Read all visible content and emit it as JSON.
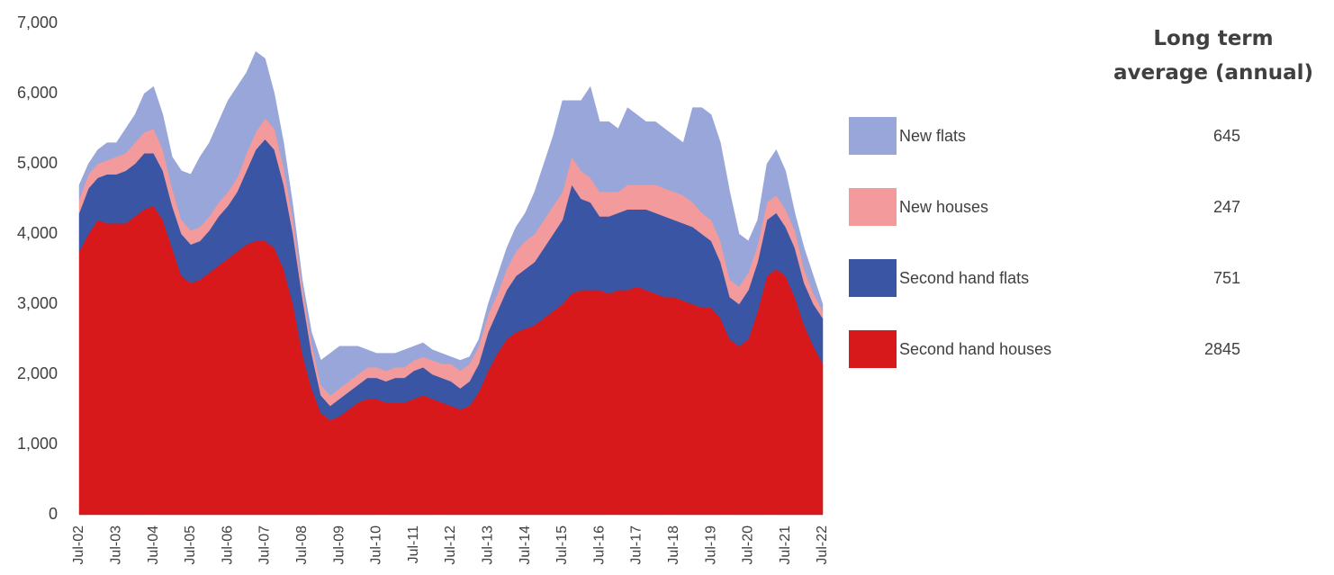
{
  "chart_data": {
    "type": "stacked_area",
    "categories": [
      "Jul-02",
      null,
      null,
      null,
      "Jul-03",
      null,
      null,
      null,
      "Jul-04",
      null,
      null,
      null,
      "Jul-05",
      null,
      null,
      null,
      "Jul-06",
      null,
      null,
      null,
      "Jul-07",
      null,
      null,
      null,
      "Jul-08",
      null,
      null,
      null,
      "Jul-09",
      null,
      null,
      null,
      "Jul-10",
      null,
      null,
      null,
      "Jul-11",
      null,
      null,
      null,
      "Jul-12",
      null,
      null,
      null,
      "Jul-13",
      null,
      null,
      null,
      "Jul-14",
      null,
      null,
      null,
      "Jul-15",
      null,
      null,
      null,
      "Jul-16",
      null,
      null,
      null,
      "Jul-17",
      null,
      null,
      null,
      "Jul-18",
      null,
      null,
      null,
      "Jul-19",
      null,
      null,
      null,
      "Jul-20",
      null,
      null,
      null,
      "Jul-21",
      null,
      null,
      null,
      "Jul-22"
    ],
    "series": [
      {
        "name": "Second hand houses",
        "color": "#d7191c",
        "average": 2845,
        "values": [
          3750,
          4000,
          4200,
          4150,
          4150,
          4150,
          4250,
          4350,
          4400,
          4200,
          3800,
          3400,
          3300,
          3350,
          3450,
          3550,
          3650,
          3750,
          3850,
          3900,
          3900,
          3800,
          3500,
          3000,
          2300,
          1800,
          1450,
          1350,
          1400,
          1500,
          1600,
          1650,
          1650,
          1600,
          1600,
          1600,
          1650,
          1700,
          1650,
          1600,
          1550,
          1500,
          1550,
          1750,
          2050,
          2300,
          2500,
          2600,
          2650,
          2700,
          2800,
          2900,
          3000,
          3150,
          3200,
          3200,
          3200,
          3150,
          3200,
          3200,
          3250,
          3200,
          3150,
          3100,
          3100,
          3050,
          3000,
          2950,
          2950,
          2800,
          2500,
          2400,
          2500,
          2900,
          3400,
          3500,
          3400,
          3100,
          2700,
          2400,
          2150
        ]
      },
      {
        "name": "Second hand flats",
        "color": "#3a55a4",
        "average": 751,
        "values": [
          550,
          650,
          600,
          700,
          700,
          750,
          750,
          800,
          750,
          700,
          600,
          600,
          550,
          550,
          600,
          700,
          750,
          850,
          1050,
          1300,
          1450,
          1400,
          1200,
          1000,
          800,
          500,
          250,
          200,
          250,
          250,
          250,
          300,
          300,
          300,
          350,
          350,
          400,
          400,
          350,
          350,
          350,
          300,
          350,
          400,
          550,
          600,
          700,
          800,
          850,
          900,
          1000,
          1100,
          1200,
          1550,
          1300,
          1250,
          1050,
          1100,
          1100,
          1150,
          1100,
          1150,
          1150,
          1150,
          1100,
          1100,
          1100,
          1050,
          950,
          800,
          600,
          600,
          700,
          700,
          800,
          800,
          700,
          700,
          600,
          600,
          650
        ]
      },
      {
        "name": "New houses",
        "color": "#f29a9c",
        "average": 247,
        "values": [
          200,
          200,
          200,
          200,
          250,
          250,
          300,
          300,
          350,
          300,
          250,
          200,
          200,
          200,
          200,
          200,
          200,
          200,
          250,
          250,
          300,
          300,
          250,
          200,
          150,
          150,
          150,
          150,
          150,
          150,
          150,
          150,
          150,
          150,
          150,
          150,
          150,
          150,
          200,
          200,
          250,
          250,
          250,
          250,
          250,
          250,
          300,
          350,
          400,
          400,
          400,
          400,
          400,
          400,
          400,
          350,
          350,
          350,
          300,
          350,
          350,
          350,
          400,
          400,
          400,
          400,
          350,
          300,
          300,
          300,
          250,
          250,
          250,
          250,
          250,
          250,
          250,
          250,
          200,
          150,
          100
        ]
      },
      {
        "name": "New flats",
        "color": "#98a6d9",
        "average": 645,
        "values": [
          200,
          150,
          200,
          250,
          200,
          350,
          400,
          550,
          600,
          500,
          450,
          700,
          800,
          1000,
          1050,
          1150,
          1300,
          1300,
          1150,
          1150,
          850,
          500,
          350,
          200,
          100,
          150,
          350,
          600,
          600,
          500,
          400,
          250,
          200,
          250,
          200,
          250,
          200,
          200,
          150,
          150,
          100,
          150,
          100,
          100,
          150,
          250,
          300,
          350,
          400,
          600,
          800,
          1000,
          1300,
          800,
          1000,
          1300,
          1000,
          1000,
          900,
          1100,
          1000,
          900,
          900,
          850,
          800,
          750,
          1350,
          1500,
          1500,
          1400,
          1250,
          750,
          450,
          350,
          550,
          650,
          550,
          250,
          300,
          250,
          100
        ]
      }
    ],
    "ylim": [
      0,
      7000
    ],
    "yticks": [
      0,
      {
        "value": 1000,
        "label": "1,000"
      },
      {
        "value": 2000,
        "label": "2,000"
      },
      {
        "value": 3000,
        "label": "3,000"
      },
      {
        "value": 4000,
        "label": "4,000"
      },
      {
        "value": 5000,
        "label": "5,000"
      },
      {
        "value": 6000,
        "label": "6,000"
      },
      {
        "value": 7000,
        "label": "7,000"
      }
    ],
    "legend_title": "Long term average (annual)"
  }
}
